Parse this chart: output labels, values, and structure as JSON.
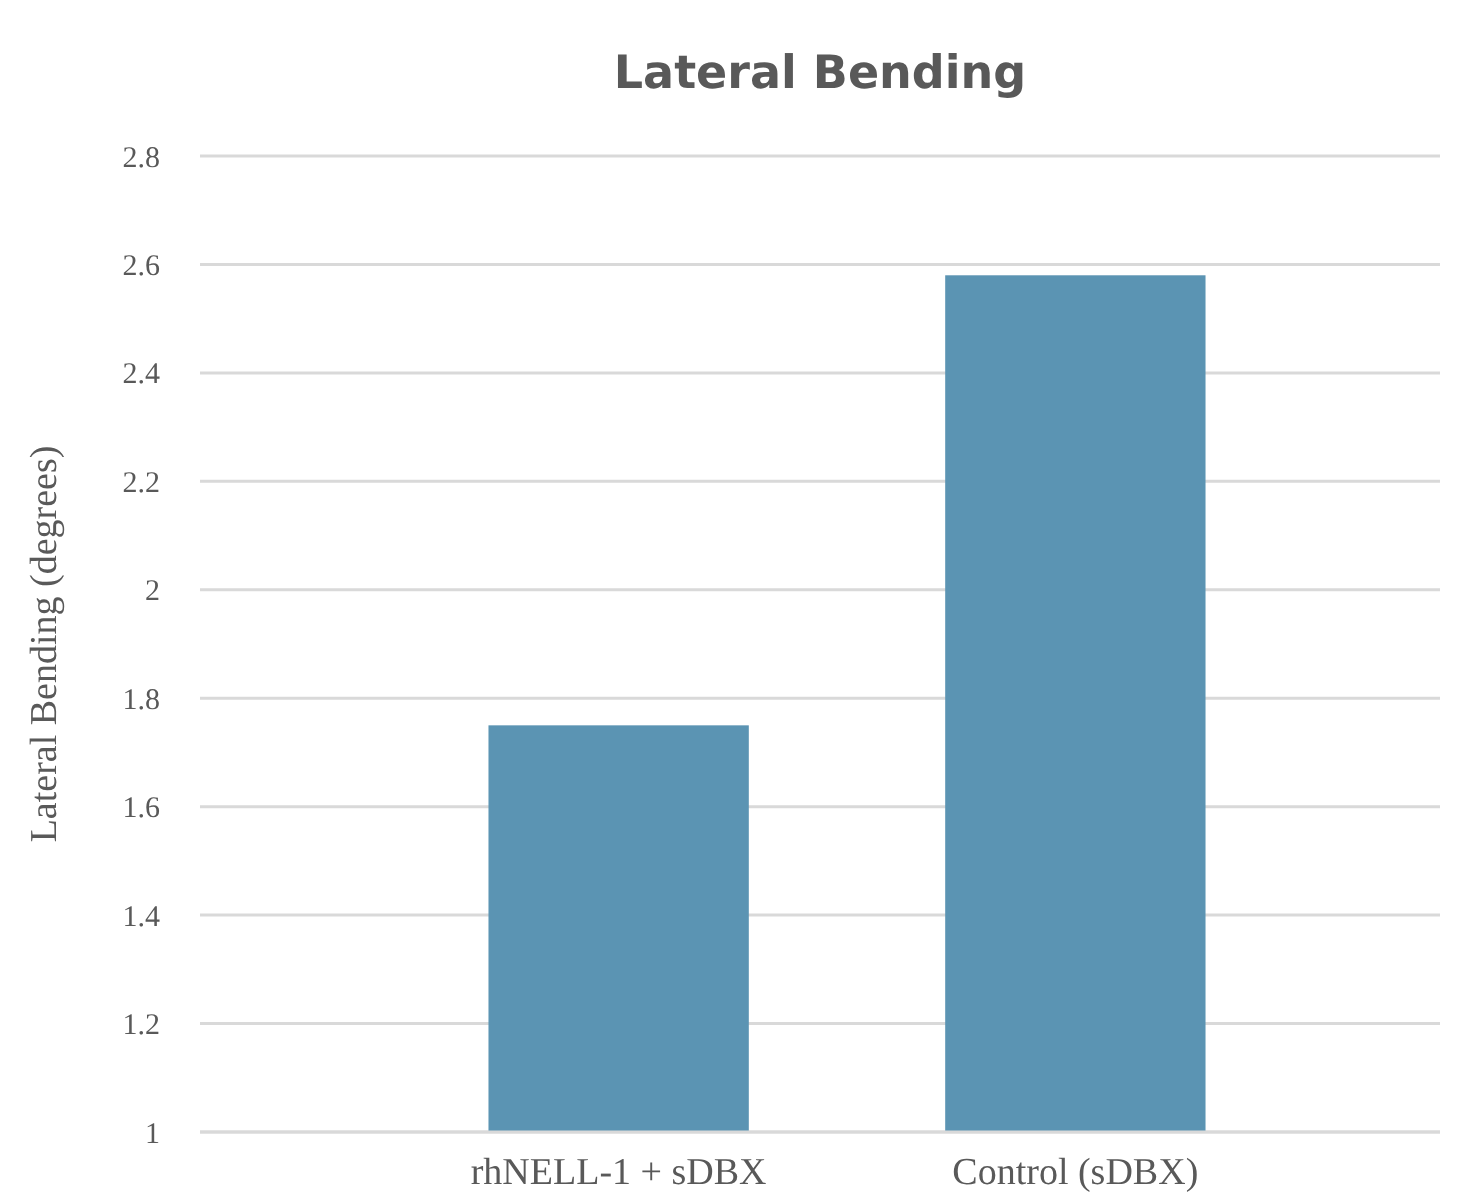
{
  "chart_data": {
    "type": "bar",
    "title": "Lateral Bending",
    "ylabel": "Lateral Bending (degrees)",
    "categories": [
      "rhNELL-1 + sDBX",
      "Control (sDBX)"
    ],
    "values": [
      1.75,
      2.58
    ],
    "color": "#5b94b3",
    "ylim": [
      1,
      2.8
    ],
    "yticks": [
      1,
      1.2,
      1.4,
      1.6,
      1.8,
      2,
      2.2,
      2.4,
      2.6,
      2.8
    ],
    "grid": "y"
  }
}
